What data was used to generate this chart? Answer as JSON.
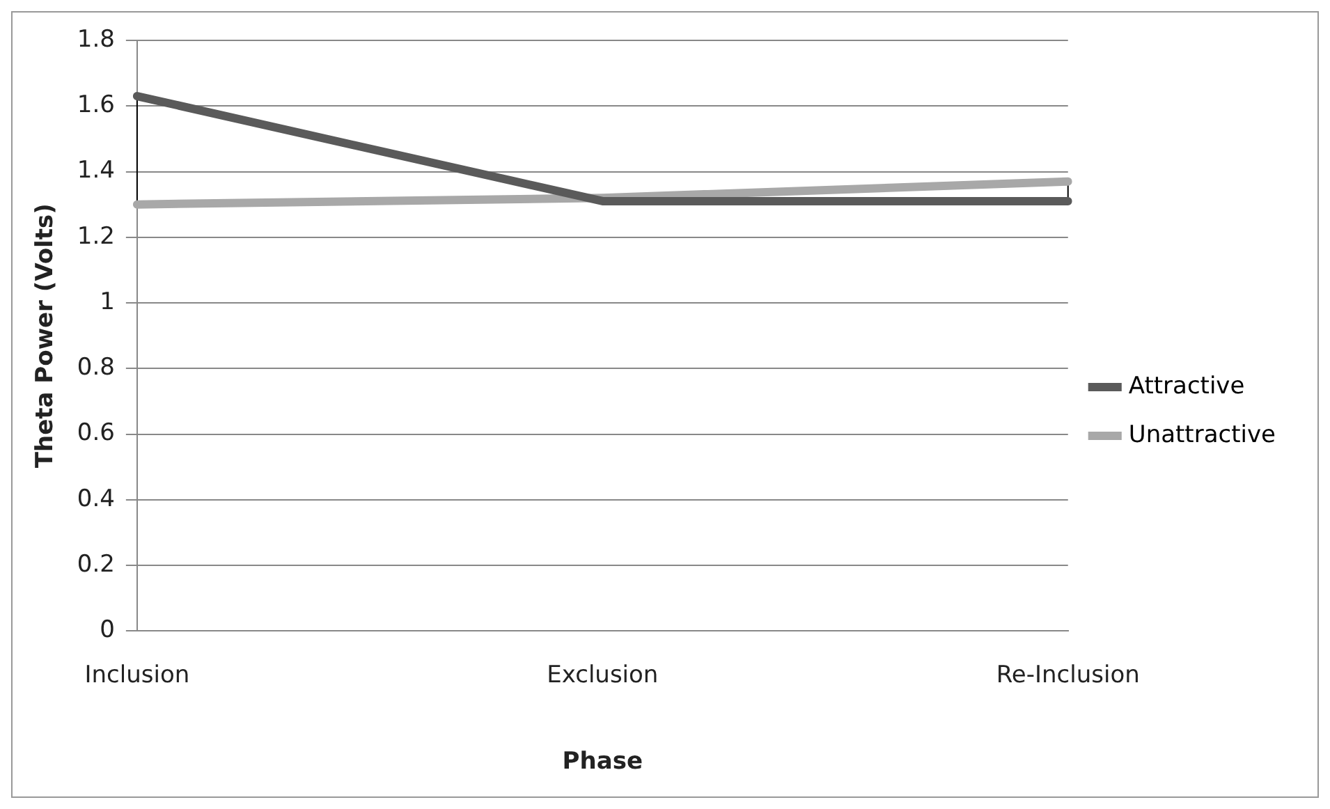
{
  "chart_data": {
    "type": "line",
    "xlabel": "Phase",
    "ylabel": "Theta Power (Volts)",
    "categories": [
      "Inclusion",
      "Exclusion",
      "Re-Inclusion"
    ],
    "series": [
      {
        "name": "Attractive",
        "color": "#5a5a5a",
        "values": [
          1.63,
          1.31,
          1.31
        ]
      },
      {
        "name": "Unattractive",
        "color": "#a8a8a8",
        "values": [
          1.3,
          1.32,
          1.37
        ]
      }
    ],
    "ylim": [
      0,
      1.8
    ],
    "yticks": [
      0,
      0.2,
      0.4,
      0.6,
      0.8,
      1,
      1.2,
      1.4,
      1.6,
      1.8
    ],
    "grid": "y",
    "legend": "right",
    "marker": "none",
    "line_style": "solid"
  }
}
